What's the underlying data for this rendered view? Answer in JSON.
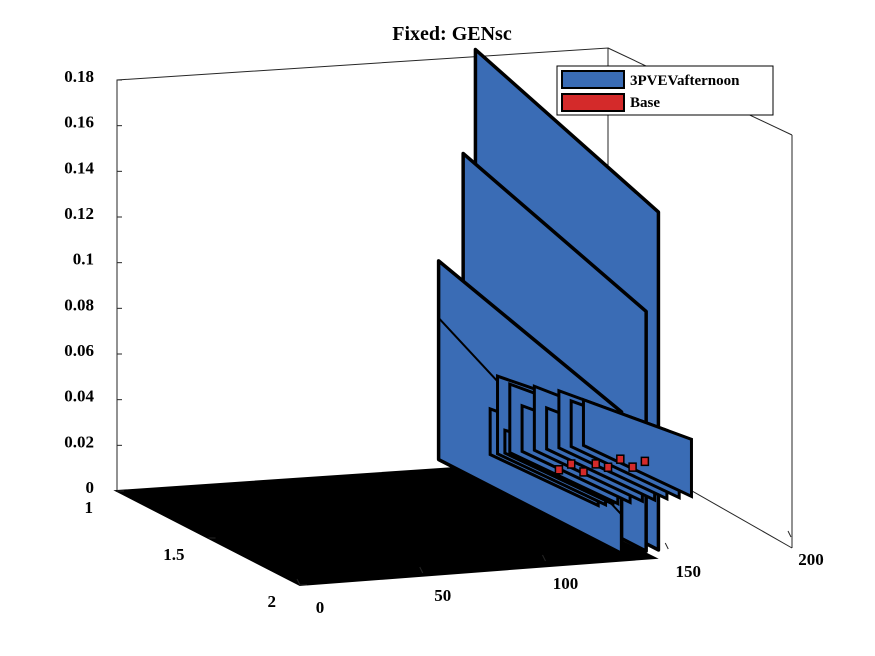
{
  "chart_data": {
    "type": "area",
    "title": "Fixed: GENsc",
    "xlabel": "",
    "ylabel": "",
    "zlabel": "",
    "x_ticks": [
      "0",
      "50",
      "100",
      "150",
      "200"
    ],
    "y_ticks": [
      "1",
      "1.5",
      "2"
    ],
    "z_ticks": [
      "0",
      "0.02",
      "0.04",
      "0.06",
      "0.08",
      "0.1",
      "0.12",
      "0.14",
      "0.16",
      "0.18"
    ],
    "xlim": [
      0,
      200
    ],
    "ylim": [
      1,
      2
    ],
    "zlim": [
      0,
      0.18
    ],
    "legend": {
      "position": "top-right",
      "entries": [
        {
          "name": "3PVEVafternoon",
          "color": "#3a6cb5"
        },
        {
          "name": "Base",
          "color": "#d42a2a"
        }
      ]
    },
    "series": [
      {
        "name": "3PVEVafternoon",
        "color": "#3a6cb5",
        "x": [
          0,
          130,
          131,
          140,
          141,
          145,
          146,
          150,
          152,
          155,
          158,
          160,
          165,
          170,
          175,
          180,
          185,
          190
        ],
        "y_start": [
          0,
          0,
          0.087,
          0.087,
          0.133,
          0.133,
          0.178,
          0.178,
          0.02,
          0.034,
          0.01,
          0.03,
          0.02,
          0.028,
          0.018,
          0.025,
          0.02,
          0.02
        ],
        "y_end": [
          0,
          0,
          0.062,
          0.062,
          0.105,
          0.105,
          0.148,
          0.148,
          0.015,
          0.03,
          0.008,
          0.025,
          0.015,
          0.022,
          0.012,
          0.02,
          0.015,
          0.015
        ]
      },
      {
        "name": "Base",
        "color": "#d42a2a",
        "x": [
          150,
          155,
          160,
          165,
          170,
          175,
          180,
          185
        ],
        "values": [
          0.01,
          0.012,
          0.008,
          0.011,
          0.009,
          0.012,
          0.008,
          0.01
        ]
      }
    ]
  }
}
